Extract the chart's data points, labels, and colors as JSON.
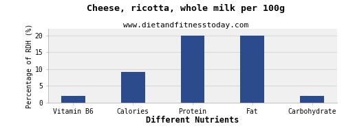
{
  "title": "Cheese, ricotta, whole milk per 100g",
  "subtitle": "www.dietandfitnesstoday.com",
  "xlabel": "Different Nutrients",
  "ylabel": "Percentage of RDH (%)",
  "categories": [
    "Vitamin B6",
    "Calories",
    "Protein",
    "Fat",
    "Carbohydrate"
  ],
  "values": [
    2,
    9.2,
    20,
    20,
    2
  ],
  "bar_color": "#2b4b8c",
  "ylim": [
    0,
    22
  ],
  "yticks": [
    0,
    5,
    10,
    15,
    20
  ],
  "background_color": "#ffffff",
  "plot_bg_color": "#f0f0f0",
  "grid_color": "#d8d8d8",
  "title_fontsize": 9.5,
  "subtitle_fontsize": 8,
  "xlabel_fontsize": 8.5,
  "ylabel_fontsize": 7,
  "tick_fontsize": 7
}
